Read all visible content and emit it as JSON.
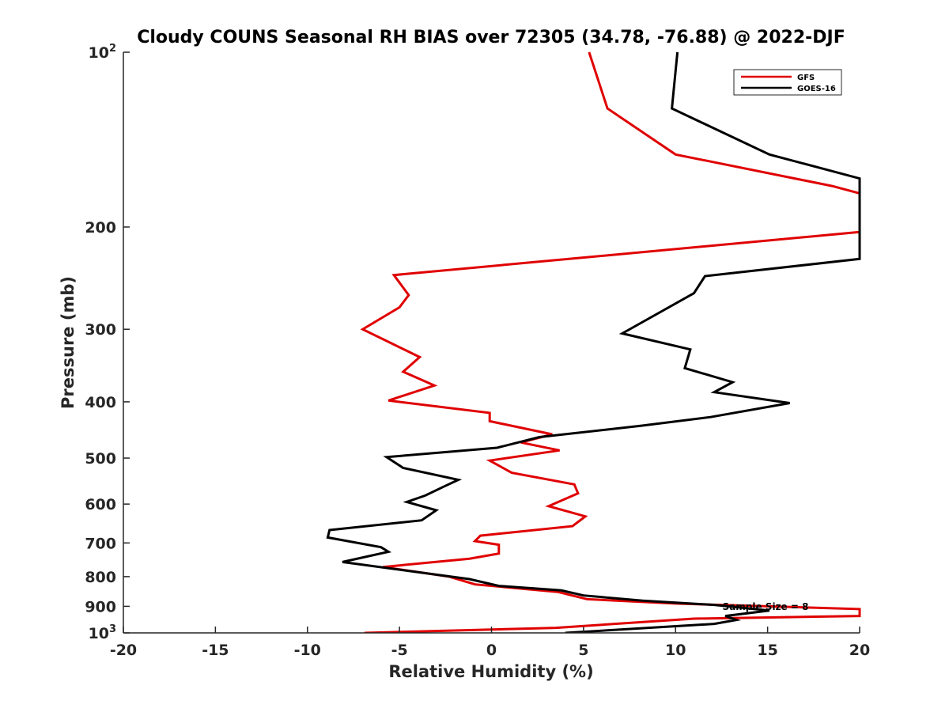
{
  "chart_data": {
    "type": "line",
    "title": "Cloudy COUNS Seasonal RH BIAS over 72305 (34.78, -76.88) @ 2022-DJF",
    "xlabel": "Relative Humidity (%)",
    "ylabel": "Pressure (mb)",
    "xlim": [
      -20,
      20
    ],
    "ylim": [
      100,
      1000
    ],
    "yscale": "log",
    "y_reversed": true,
    "grid": false,
    "legend_position": "top-right",
    "x_ticks": [
      "-20",
      "-15",
      "-10",
      "-5",
      "0",
      "5",
      "10",
      "15",
      "20"
    ],
    "y_ticks": [
      {
        "value": 100,
        "base": "10",
        "exp": "2"
      },
      {
        "value": 200,
        "label": "200"
      },
      {
        "value": 300,
        "label": "300"
      },
      {
        "value": 400,
        "label": "400"
      },
      {
        "value": 500,
        "label": "500"
      },
      {
        "value": 600,
        "label": "600"
      },
      {
        "value": 700,
        "label": "700"
      },
      {
        "value": 800,
        "label": "800"
      },
      {
        "value": 900,
        "label": "900"
      },
      {
        "value": 1000,
        "base": "10",
        "exp": "3"
      }
    ],
    "annotation": "Sample Size = 8",
    "series": [
      {
        "name": "GFS",
        "color": "#e00000",
        "points": [
          [
            5.3,
            100
          ],
          [
            6.3,
            125
          ],
          [
            10.0,
            150
          ],
          [
            18.5,
            170
          ],
          [
            20.0,
            175
          ],
          [
            20.0,
            204
          ],
          [
            -5.3,
            242
          ],
          [
            -4.5,
            262
          ],
          [
            -5.0,
            275
          ],
          [
            -7.0,
            300
          ],
          [
            -3.9,
            335
          ],
          [
            -4.8,
            355
          ],
          [
            -3.1,
            375
          ],
          [
            -5.6,
            398
          ],
          [
            -0.1,
            418
          ],
          [
            -0.1,
            432
          ],
          [
            3.3,
            455
          ],
          [
            1.6,
            470
          ],
          [
            3.7,
            485
          ],
          [
            -0.1,
            505
          ],
          [
            1.1,
            530
          ],
          [
            4.5,
            555
          ],
          [
            4.7,
            575
          ],
          [
            3.1,
            605
          ],
          [
            5.1,
            630
          ],
          [
            4.4,
            655
          ],
          [
            -0.6,
            680
          ],
          [
            -0.9,
            695
          ],
          [
            0.4,
            705
          ],
          [
            0.4,
            730
          ],
          [
            -1.2,
            745
          ],
          [
            -5.9,
            770
          ],
          [
            -2.3,
            800
          ],
          [
            -0.9,
            825
          ],
          [
            3.6,
            850
          ],
          [
            5.2,
            875
          ],
          [
            10.0,
            890
          ],
          [
            20.0,
            910
          ],
          [
            20.0,
            935
          ],
          [
            11.0,
            945
          ],
          [
            3.5,
            980
          ],
          [
            -6.9,
            1000
          ]
        ]
      },
      {
        "name": "GOES-16",
        "color": "#000000",
        "points": [
          [
            10.1,
            100
          ],
          [
            9.8,
            125
          ],
          [
            15.1,
            150
          ],
          [
            20.0,
            165
          ],
          [
            20.0,
            227
          ],
          [
            11.6,
            243
          ],
          [
            11.0,
            260
          ],
          [
            7.1,
            305
          ],
          [
            10.8,
            325
          ],
          [
            10.5,
            350
          ],
          [
            13.1,
            370
          ],
          [
            12.1,
            385
          ],
          [
            16.2,
            402
          ],
          [
            11.9,
            425
          ],
          [
            8.1,
            440
          ],
          [
            2.6,
            460
          ],
          [
            0.3,
            480
          ],
          [
            -5.7,
            498
          ],
          [
            -4.8,
            520
          ],
          [
            -1.8,
            545
          ],
          [
            -2.6,
            560
          ],
          [
            -3.6,
            580
          ],
          [
            -4.6,
            595
          ],
          [
            -3.0,
            615
          ],
          [
            -3.8,
            640
          ],
          [
            -8.8,
            665
          ],
          [
            -8.9,
            685
          ],
          [
            -6.0,
            712
          ],
          [
            -5.6,
            725
          ],
          [
            -8.1,
            755
          ],
          [
            -1.2,
            808
          ],
          [
            0.4,
            830
          ],
          [
            3.8,
            845
          ],
          [
            5.0,
            862
          ],
          [
            8.2,
            880
          ],
          [
            12.1,
            895
          ],
          [
            15.1,
            915
          ],
          [
            12.7,
            935
          ],
          [
            13.3,
            950
          ],
          [
            12.1,
            965
          ],
          [
            4.0,
            1000
          ]
        ]
      }
    ]
  }
}
